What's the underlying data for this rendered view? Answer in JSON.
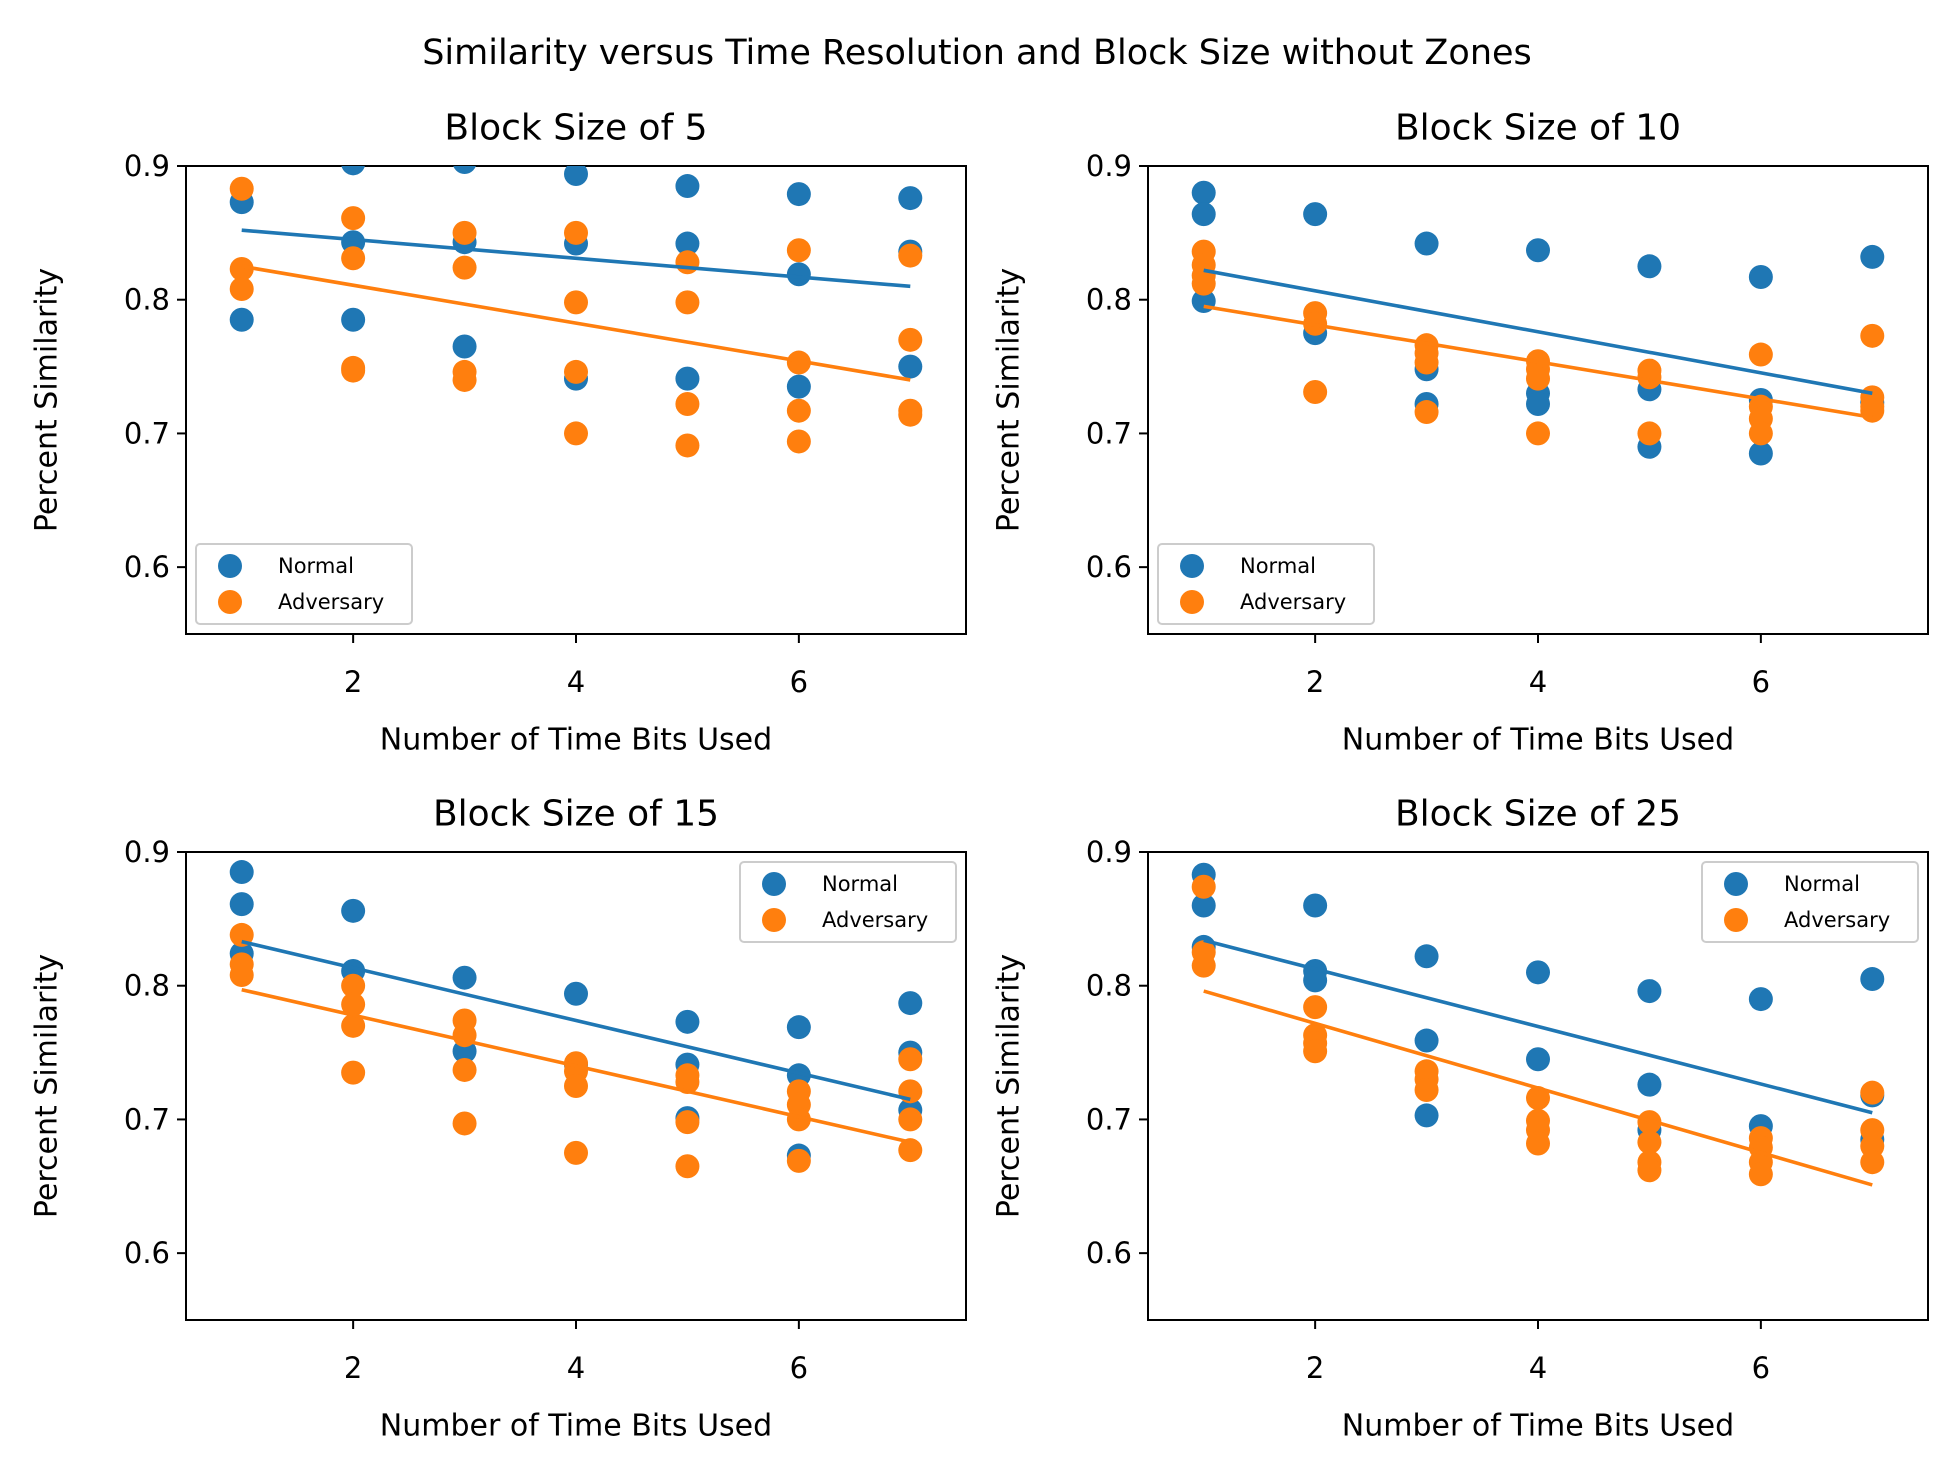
{
  "figure": {
    "suptitle": "Similarity versus Time Resolution and Block Size without Zones",
    "colors": {
      "normal": "#1f77b4",
      "adversary": "#ff7f0e"
    }
  },
  "chart_data": [
    {
      "type": "scatter",
      "title": "Block Size of 5",
      "xlabel": "Number of Time Bits Used",
      "ylabel": "Percent Similarity",
      "xlim": [
        0.5,
        7.5
      ],
      "ylim": [
        0.55,
        0.9
      ],
      "xticks": [
        2,
        4,
        6
      ],
      "yticks": [
        0.6,
        0.7,
        0.8,
        0.9
      ],
      "grid": false,
      "legend_position": "bottom-left",
      "series": [
        {
          "name": "Normal",
          "color": "#1f77b4",
          "points": [
            [
              1,
              0.873
            ],
            [
              1,
              0.785
            ],
            [
              2,
              0.902
            ],
            [
              2,
              0.843
            ],
            [
              2,
              0.785
            ],
            [
              3,
              0.903
            ],
            [
              3,
              0.843
            ],
            [
              3,
              0.765
            ],
            [
              4,
              0.894
            ],
            [
              4,
              0.842
            ],
            [
              4,
              0.741
            ],
            [
              5,
              0.885
            ],
            [
              5,
              0.842
            ],
            [
              5,
              0.741
            ],
            [
              6,
              0.879
            ],
            [
              6,
              0.819
            ],
            [
              6,
              0.735
            ],
            [
              7,
              0.876
            ],
            [
              7,
              0.836
            ],
            [
              7,
              0.75
            ]
          ],
          "trend": [
            [
              1,
              0.852
            ],
            [
              7,
              0.81
            ]
          ]
        },
        {
          "name": "Adversary",
          "color": "#ff7f0e",
          "points": [
            [
              1,
              0.883
            ],
            [
              1,
              0.823
            ],
            [
              1,
              0.808
            ],
            [
              2,
              0.861
            ],
            [
              2,
              0.831
            ],
            [
              2,
              0.749
            ],
            [
              2,
              0.747
            ],
            [
              3,
              0.85
            ],
            [
              3,
              0.824
            ],
            [
              3,
              0.746
            ],
            [
              3,
              0.74
            ],
            [
              4,
              0.85
            ],
            [
              4,
              0.798
            ],
            [
              4,
              0.746
            ],
            [
              4,
              0.7
            ],
            [
              5,
              0.828
            ],
            [
              5,
              0.798
            ],
            [
              5,
              0.722
            ],
            [
              5,
              0.691
            ],
            [
              6,
              0.837
            ],
            [
              6,
              0.753
            ],
            [
              6,
              0.717
            ],
            [
              6,
              0.694
            ],
            [
              7,
              0.833
            ],
            [
              7,
              0.77
            ],
            [
              7,
              0.717
            ],
            [
              7,
              0.714
            ]
          ],
          "trend": [
            [
              1,
              0.825
            ],
            [
              7,
              0.74
            ]
          ]
        }
      ]
    },
    {
      "type": "scatter",
      "title": "Block Size of 10",
      "xlabel": "Number of Time Bits Used",
      "ylabel": "Percent Similarity",
      "xlim": [
        0.5,
        7.5
      ],
      "ylim": [
        0.55,
        0.9
      ],
      "xticks": [
        2,
        4,
        6
      ],
      "yticks": [
        0.6,
        0.7,
        0.8,
        0.9
      ],
      "grid": false,
      "legend_position": "bottom-left",
      "series": [
        {
          "name": "Normal",
          "color": "#1f77b4",
          "points": [
            [
              1,
              0.88
            ],
            [
              1,
              0.864
            ],
            [
              1,
              0.799
            ],
            [
              2,
              0.864
            ],
            [
              2,
              0.775
            ],
            [
              3,
              0.842
            ],
            [
              3,
              0.748
            ],
            [
              3,
              0.722
            ],
            [
              4,
              0.837
            ],
            [
              4,
              0.73
            ],
            [
              4,
              0.722
            ],
            [
              5,
              0.825
            ],
            [
              5,
              0.733
            ],
            [
              5,
              0.69
            ],
            [
              6,
              0.817
            ],
            [
              6,
              0.725
            ],
            [
              6,
              0.685
            ],
            [
              7,
              0.832
            ],
            [
              7,
              0.723
            ]
          ],
          "trend": [
            [
              1,
              0.822
            ],
            [
              7,
              0.73
            ]
          ]
        },
        {
          "name": "Adversary",
          "color": "#ff7f0e",
          "points": [
            [
              1,
              0.836
            ],
            [
              1,
              0.826
            ],
            [
              1,
              0.818
            ],
            [
              1,
              0.812
            ],
            [
              2,
              0.79
            ],
            [
              2,
              0.782
            ],
            [
              2,
              0.731
            ],
            [
              3,
              0.766
            ],
            [
              3,
              0.76
            ],
            [
              3,
              0.753
            ],
            [
              3,
              0.716
            ],
            [
              4,
              0.754
            ],
            [
              4,
              0.748
            ],
            [
              4,
              0.741
            ],
            [
              4,
              0.7
            ],
            [
              5,
              0.747
            ],
            [
              5,
              0.742
            ],
            [
              5,
              0.7
            ],
            [
              6,
              0.759
            ],
            [
              6,
              0.72
            ],
            [
              6,
              0.711
            ],
            [
              6,
              0.7
            ],
            [
              7,
              0.773
            ],
            [
              7,
              0.727
            ],
            [
              7,
              0.72
            ],
            [
              7,
              0.717
            ]
          ],
          "trend": [
            [
              1,
              0.795
            ],
            [
              7,
              0.712
            ]
          ]
        }
      ]
    },
    {
      "type": "scatter",
      "title": "Block Size of 15",
      "xlabel": "Number of Time Bits Used",
      "ylabel": "Percent Similarity",
      "xlim": [
        0.5,
        7.5
      ],
      "ylim": [
        0.55,
        0.9
      ],
      "xticks": [
        2,
        4,
        6
      ],
      "yticks": [
        0.6,
        0.7,
        0.8,
        0.9
      ],
      "grid": false,
      "legend_position": "top-right",
      "series": [
        {
          "name": "Normal",
          "color": "#1f77b4",
          "points": [
            [
              1,
              0.885
            ],
            [
              1,
              0.861
            ],
            [
              1,
              0.824
            ],
            [
              2,
              0.856
            ],
            [
              2,
              0.811
            ],
            [
              3,
              0.806
            ],
            [
              3,
              0.751
            ],
            [
              4,
              0.794
            ],
            [
              4,
              0.741
            ],
            [
              5,
              0.773
            ],
            [
              5,
              0.741
            ],
            [
              5,
              0.701
            ],
            [
              6,
              0.769
            ],
            [
              6,
              0.733
            ],
            [
              6,
              0.673
            ],
            [
              7,
              0.787
            ],
            [
              7,
              0.75
            ],
            [
              7,
              0.707
            ]
          ],
          "trend": [
            [
              1,
              0.833
            ],
            [
              7,
              0.715
            ]
          ]
        },
        {
          "name": "Adversary",
          "color": "#ff7f0e",
          "points": [
            [
              1,
              0.838
            ],
            [
              1,
              0.816
            ],
            [
              1,
              0.808
            ],
            [
              2,
              0.8
            ],
            [
              2,
              0.786
            ],
            [
              2,
              0.77
            ],
            [
              2,
              0.735
            ],
            [
              3,
              0.774
            ],
            [
              3,
              0.763
            ],
            [
              3,
              0.737
            ],
            [
              3,
              0.697
            ],
            [
              4,
              0.742
            ],
            [
              4,
              0.736
            ],
            [
              4,
              0.725
            ],
            [
              4,
              0.675
            ],
            [
              5,
              0.733
            ],
            [
              5,
              0.728
            ],
            [
              5,
              0.698
            ],
            [
              5,
              0.665
            ],
            [
              6,
              0.721
            ],
            [
              6,
              0.711
            ],
            [
              6,
              0.7
            ],
            [
              6,
              0.669
            ],
            [
              7,
              0.745
            ],
            [
              7,
              0.721
            ],
            [
              7,
              0.7
            ],
            [
              7,
              0.677
            ]
          ],
          "trend": [
            [
              1,
              0.797
            ],
            [
              7,
              0.683
            ]
          ]
        }
      ]
    },
    {
      "type": "scatter",
      "title": "Block Size of 25",
      "xlabel": "Number of Time Bits Used",
      "ylabel": "Percent Similarity",
      "xlim": [
        0.5,
        7.5
      ],
      "ylim": [
        0.55,
        0.9
      ],
      "xticks": [
        2,
        4,
        6
      ],
      "yticks": [
        0.6,
        0.7,
        0.8,
        0.9
      ],
      "grid": false,
      "legend_position": "top-right",
      "series": [
        {
          "name": "Normal",
          "color": "#1f77b4",
          "points": [
            [
              1,
              0.883
            ],
            [
              1,
              0.86
            ],
            [
              1,
              0.829
            ],
            [
              2,
              0.86
            ],
            [
              2,
              0.811
            ],
            [
              2,
              0.804
            ],
            [
              3,
              0.822
            ],
            [
              3,
              0.759
            ],
            [
              3,
              0.703
            ],
            [
              4,
              0.81
            ],
            [
              4,
              0.745
            ],
            [
              5,
              0.796
            ],
            [
              5,
              0.726
            ],
            [
              5,
              0.692
            ],
            [
              6,
              0.79
            ],
            [
              6,
              0.695
            ],
            [
              7,
              0.805
            ],
            [
              7,
              0.718
            ],
            [
              7,
              0.685
            ]
          ],
          "trend": [
            [
              1,
              0.834
            ],
            [
              7,
              0.705
            ]
          ]
        },
        {
          "name": "Adversary",
          "color": "#ff7f0e",
          "points": [
            [
              1,
              0.874
            ],
            [
              1,
              0.825
            ],
            [
              1,
              0.815
            ],
            [
              2,
              0.784
            ],
            [
              2,
              0.763
            ],
            [
              2,
              0.757
            ],
            [
              2,
              0.751
            ],
            [
              3,
              0.736
            ],
            [
              3,
              0.73
            ],
            [
              3,
              0.722
            ],
            [
              4,
              0.716
            ],
            [
              4,
              0.699
            ],
            [
              4,
              0.692
            ],
            [
              4,
              0.682
            ],
            [
              5,
              0.698
            ],
            [
              5,
              0.683
            ],
            [
              5,
              0.668
            ],
            [
              5,
              0.662
            ],
            [
              6,
              0.686
            ],
            [
              6,
              0.679
            ],
            [
              6,
              0.668
            ],
            [
              6,
              0.659
            ],
            [
              7,
              0.72
            ],
            [
              7,
              0.692
            ],
            [
              7,
              0.68
            ],
            [
              7,
              0.668
            ]
          ],
          "trend": [
            [
              1,
              0.796
            ],
            [
              7,
              0.651
            ]
          ]
        }
      ]
    }
  ]
}
